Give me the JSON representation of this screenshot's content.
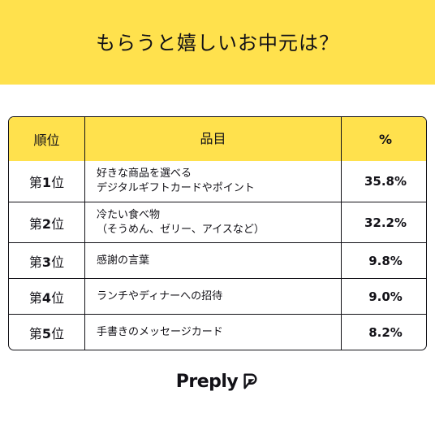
{
  "banner": {
    "title": "もらうと嬉しいお中元は？"
  },
  "table": {
    "headers": {
      "rank": "順位",
      "item": "品目",
      "percent": "%"
    },
    "rows": [
      {
        "rank_prefix": "第",
        "rank_num": "1",
        "rank_suffix": "位",
        "item_lines": [
          "好きな商品を選べる",
          "デジタルギフトカードやポイント"
        ],
        "percent": "35.8%"
      },
      {
        "rank_prefix": "第",
        "rank_num": "2",
        "rank_suffix": "位",
        "item_lines": [
          "冷たい食べ物",
          "（そうめん、ゼリー、アイスなど）"
        ],
        "percent": "32.2%"
      },
      {
        "rank_prefix": "第",
        "rank_num": "3",
        "rank_suffix": "位",
        "item_lines": [
          "感謝の言葉"
        ],
        "percent": "9.8%"
      },
      {
        "rank_prefix": "第",
        "rank_num": "4",
        "rank_suffix": "位",
        "item_lines": [
          "ランチやディナーへの招待"
        ],
        "percent": "9.0%"
      },
      {
        "rank_prefix": "第",
        "rank_num": "5",
        "rank_suffix": "位",
        "item_lines": [
          "手書きのメッセージカード"
        ],
        "percent": "8.2%"
      }
    ]
  },
  "logo": {
    "text": "Preply",
    "icon": "preply-logo-icon"
  },
  "colors": {
    "accent_yellow": "#ffe14d",
    "ink": "#121117"
  }
}
